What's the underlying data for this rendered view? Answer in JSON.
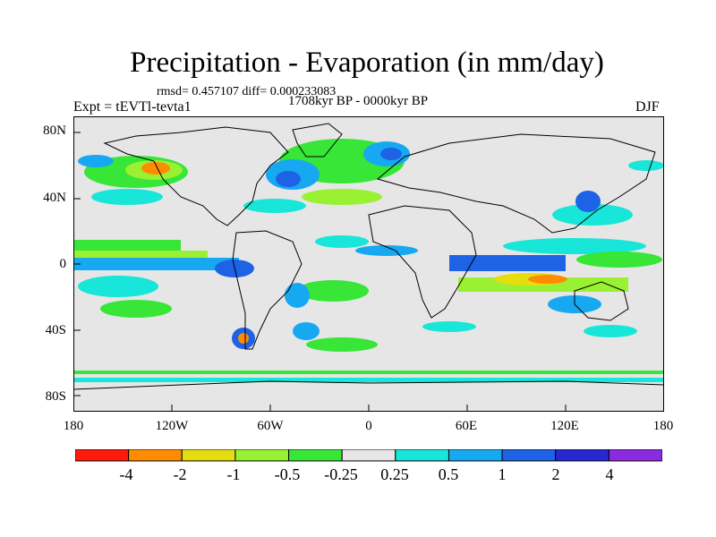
{
  "title": "Precipitation - Evaporation (in mm/day)",
  "stats": "rmsd= 0.457107 diff= 0.000233083",
  "period": "1708kyr BP - 0000kyr BP",
  "experiment": "Expt = tEVTl-tevta1",
  "season": "DJF",
  "lat_labels": [
    "80N",
    "40N",
    "0",
    "40S",
    "80S"
  ],
  "lon_labels": [
    "180",
    "120W",
    "60W",
    "0",
    "60E",
    "120E",
    "180"
  ],
  "colorbar": {
    "labels": [
      "-4",
      "-2",
      "-1",
      "-0.5",
      "-0.25",
      "0.25",
      "0.5",
      "1",
      "2",
      "4"
    ],
    "colors": [
      "#ff1a0a",
      "#ff8c00",
      "#e6dd0f",
      "#9af032",
      "#37e637",
      "#e6e6e6",
      "#17e6d8",
      "#17a8f2",
      "#1e62e6",
      "#2828d2",
      "#8a2be2"
    ]
  },
  "map_data": {
    "field": "Precipitation minus Evaporation anomaly",
    "units": "mm/day",
    "background_color": "#e6e6e6",
    "land_outline_color": "#000000"
  }
}
